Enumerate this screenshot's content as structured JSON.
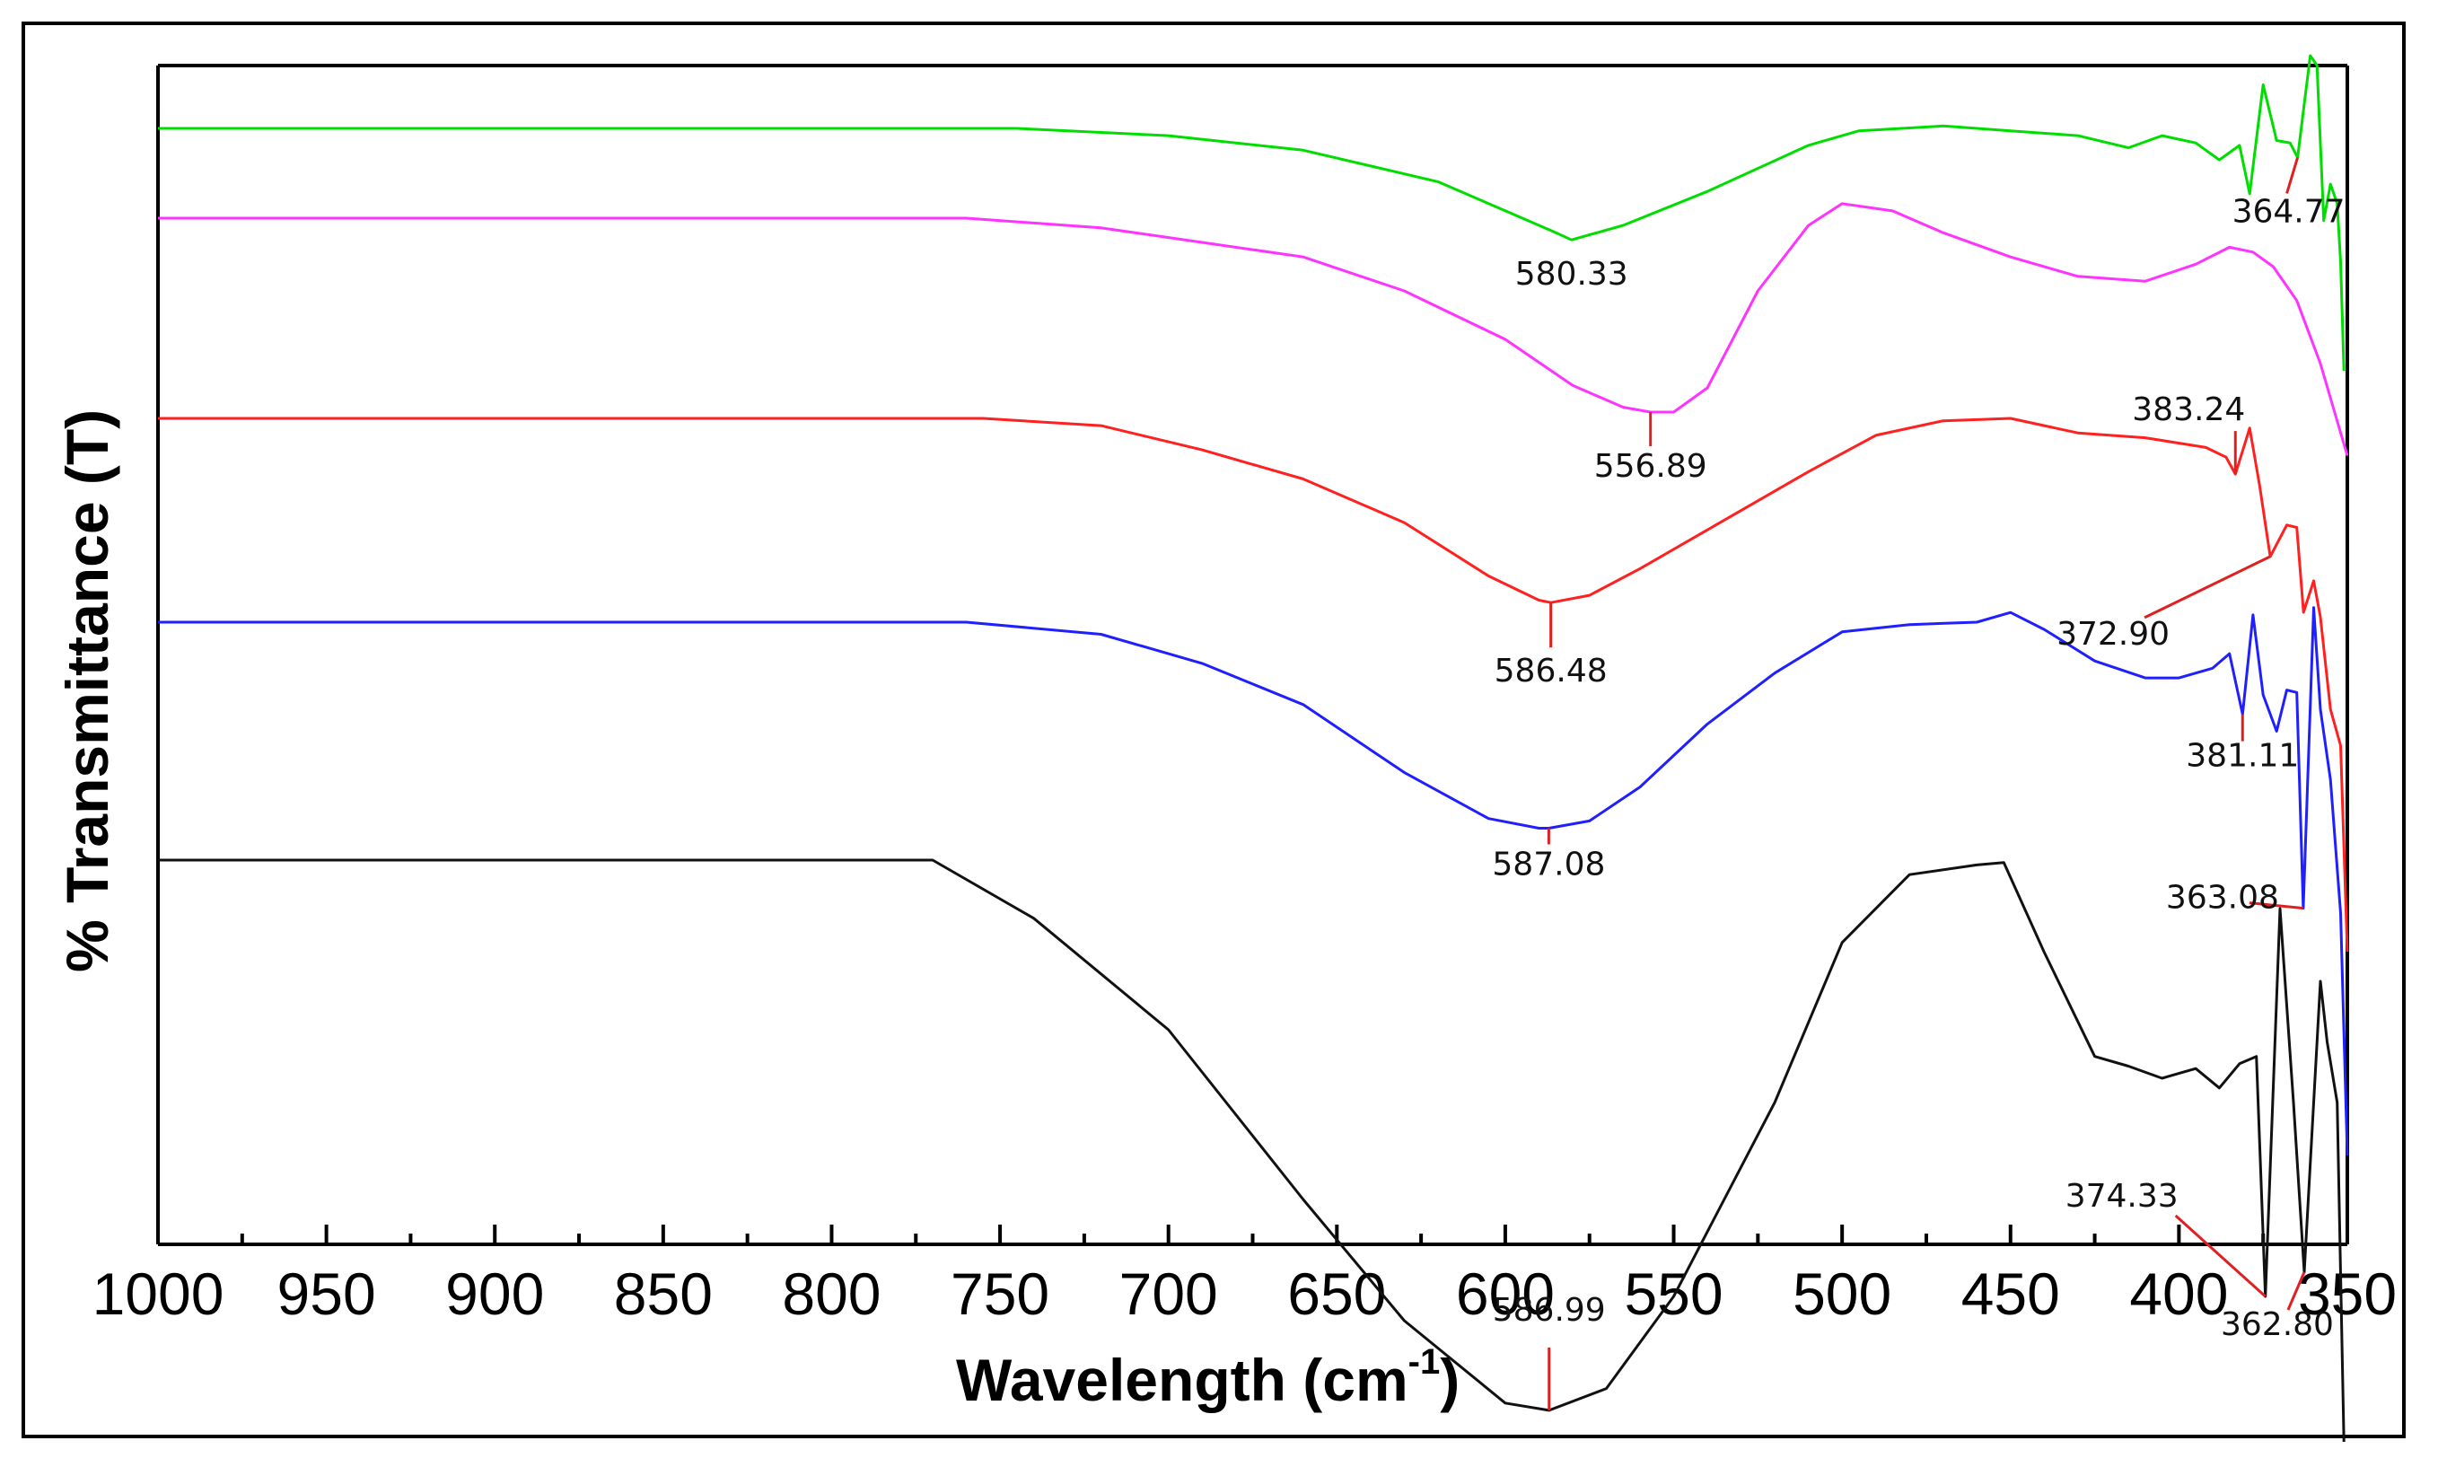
{
  "chart_data": {
    "type": "line",
    "title": "",
    "xlabel": "Wavelength (cm",
    "xlabel_superscript": "-1",
    "xlabel_suffix": ")",
    "ylabel": "% Transmittance (T)",
    "xlim": [
      1000,
      350
    ],
    "x_ticks": [
      1000,
      950,
      900,
      850,
      800,
      750,
      700,
      650,
      600,
      550,
      500,
      450,
      400,
      350
    ],
    "x_tick_labels": [
      "1000",
      "950",
      "900",
      "850",
      "800",
      "750",
      "700",
      "650",
      "600",
      "550",
      "500",
      "450",
      "400",
      "350"
    ],
    "y_ticks_shown": false,
    "grid": false,
    "legend": "none",
    "series": [
      {
        "name": "green",
        "color": "#00dd00",
        "points": [
          [
            1000,
            0.0
          ],
          [
            745,
            0.0
          ],
          [
            700,
            0.3
          ],
          [
            660,
            0.9
          ],
          [
            620,
            2.2
          ],
          [
            600,
            3.4
          ],
          [
            585,
            4.3
          ],
          [
            580.33,
            4.6
          ],
          [
            565,
            4.0
          ],
          [
            540,
            2.6
          ],
          [
            510,
            0.7
          ],
          [
            495,
            0.1
          ],
          [
            470,
            -0.1
          ],
          [
            450,
            0.1
          ],
          [
            430,
            0.3
          ],
          [
            415,
            0.8
          ],
          [
            405,
            0.3
          ],
          [
            395,
            0.6
          ],
          [
            388,
            1.3
          ],
          [
            382,
            0.7
          ],
          [
            379,
            2.7
          ],
          [
            375,
            -1.8
          ],
          [
            371,
            0.5
          ],
          [
            367,
            0.6
          ],
          [
            364.77,
            1.2
          ],
          [
            361,
            -3.0
          ],
          [
            359,
            -2.6
          ],
          [
            357,
            3.8
          ],
          [
            355,
            2.3
          ],
          [
            353,
            3.1
          ],
          [
            352,
            5.5
          ],
          [
            351,
            10.0
          ]
        ]
      },
      {
        "name": "magenta",
        "color": "#ff33ff",
        "points": [
          [
            1000,
            0.0
          ],
          [
            760,
            0.0
          ],
          [
            720,
            0.4
          ],
          [
            690,
            1.0
          ],
          [
            660,
            1.6
          ],
          [
            630,
            3.0
          ],
          [
            600,
            5.0
          ],
          [
            580,
            6.9
          ],
          [
            565,
            7.8
          ],
          [
            556.89,
            8.0
          ],
          [
            550,
            8.0
          ],
          [
            540,
            7.0
          ],
          [
            525,
            3.0
          ],
          [
            510,
            0.3
          ],
          [
            500,
            -0.6
          ],
          [
            485,
            -0.3
          ],
          [
            470,
            0.6
          ],
          [
            450,
            1.6
          ],
          [
            430,
            2.4
          ],
          [
            410,
            2.6
          ],
          [
            395,
            1.9
          ],
          [
            385,
            1.2
          ],
          [
            378,
            1.4
          ],
          [
            372,
            2.0
          ],
          [
            365,
            3.4
          ],
          [
            358,
            6.0
          ],
          [
            350,
            9.8
          ]
        ]
      },
      {
        "name": "red",
        "color": "#ff2020",
        "points": [
          [
            1000,
            0.0
          ],
          [
            755,
            0.0
          ],
          [
            720,
            0.3
          ],
          [
            690,
            1.3
          ],
          [
            660,
            2.5
          ],
          [
            630,
            4.3
          ],
          [
            605,
            6.5
          ],
          [
            590,
            7.5
          ],
          [
            586.48,
            7.6
          ],
          [
            575,
            7.3
          ],
          [
            560,
            6.2
          ],
          [
            540,
            4.6
          ],
          [
            510,
            2.2
          ],
          [
            490,
            0.7
          ],
          [
            470,
            0.1
          ],
          [
            450,
            0.0
          ],
          [
            430,
            0.6
          ],
          [
            410,
            0.8
          ],
          [
            392,
            1.2
          ],
          [
            386,
            1.6
          ],
          [
            383.24,
            2.3
          ],
          [
            379,
            0.4
          ],
          [
            376,
            2.8
          ],
          [
            372.9,
            5.7
          ],
          [
            368,
            4.4
          ],
          [
            365,
            4.5
          ],
          [
            363,
            8.0
          ],
          [
            360,
            6.7
          ],
          [
            358,
            8.2
          ],
          [
            355,
            12.0
          ],
          [
            352,
            13.5
          ],
          [
            350,
            22.0
          ]
        ]
      },
      {
        "name": "blue",
        "color": "#1f1fff",
        "points": [
          [
            1000,
            0.0
          ],
          [
            760,
            0.0
          ],
          [
            720,
            0.5
          ],
          [
            690,
            1.7
          ],
          [
            660,
            3.4
          ],
          [
            630,
            6.2
          ],
          [
            605,
            8.1
          ],
          [
            590,
            8.5
          ],
          [
            587.08,
            8.5
          ],
          [
            575,
            8.2
          ],
          [
            560,
            6.8
          ],
          [
            540,
            4.2
          ],
          [
            520,
            2.1
          ],
          [
            500,
            0.4
          ],
          [
            480,
            0.1
          ],
          [
            460,
            0.0
          ],
          [
            450,
            -0.4
          ],
          [
            440,
            0.3
          ],
          [
            425,
            1.6
          ],
          [
            410,
            2.3
          ],
          [
            400,
            2.3
          ],
          [
            390,
            1.9
          ],
          [
            385,
            1.3
          ],
          [
            381.11,
            3.8
          ],
          [
            378,
            -0.3
          ],
          [
            375,
            3.0
          ],
          [
            371,
            4.5
          ],
          [
            368,
            2.8
          ],
          [
            365,
            2.9
          ],
          [
            363.08,
            11.8
          ],
          [
            360,
            -0.6
          ],
          [
            358,
            3.6
          ],
          [
            355,
            6.5
          ],
          [
            352,
            12.0
          ],
          [
            350,
            22.0
          ]
        ]
      },
      {
        "name": "black",
        "color": "#111111",
        "points": [
          [
            1000,
            0.0
          ],
          [
            770,
            0.0
          ],
          [
            740,
            2.4
          ],
          [
            700,
            7.0
          ],
          [
            660,
            14.0
          ],
          [
            630,
            19.0
          ],
          [
            600,
            22.4
          ],
          [
            586.99,
            22.7
          ],
          [
            570,
            21.8
          ],
          [
            550,
            18.0
          ],
          [
            520,
            10.0
          ],
          [
            500,
            3.4
          ],
          [
            480,
            0.6
          ],
          [
            460,
            0.2
          ],
          [
            452,
            0.1
          ],
          [
            440,
            3.8
          ],
          [
            425,
            8.1
          ],
          [
            415,
            8.5
          ],
          [
            405,
            9.0
          ],
          [
            395,
            8.6
          ],
          [
            388,
            9.4
          ],
          [
            382,
            8.4
          ],
          [
            377,
            8.1
          ],
          [
            374.33,
            18.0
          ],
          [
            370,
            2.0
          ],
          [
            366,
            10.0
          ],
          [
            362.8,
            17.0
          ],
          [
            358,
            5.0
          ],
          [
            356,
            7.5
          ],
          [
            353,
            10.0
          ],
          [
            351,
            24.0
          ]
        ]
      }
    ],
    "annotations": [
      {
        "text": "580.33",
        "series": "green"
      },
      {
        "text": "364.77",
        "series": "green"
      },
      {
        "text": "556.89",
        "series": "magenta"
      },
      {
        "text": "383.24",
        "series": "red"
      },
      {
        "text": "586.48",
        "series": "red"
      },
      {
        "text": "372.90",
        "series": "red"
      },
      {
        "text": "587.08",
        "series": "blue"
      },
      {
        "text": "381.11",
        "series": "blue"
      },
      {
        "text": "363.08",
        "series": "blue"
      },
      {
        "text": "586.99",
        "series": "black"
      },
      {
        "text": "374.33",
        "series": "black"
      },
      {
        "text": "362.80",
        "series": "black"
      }
    ]
  }
}
